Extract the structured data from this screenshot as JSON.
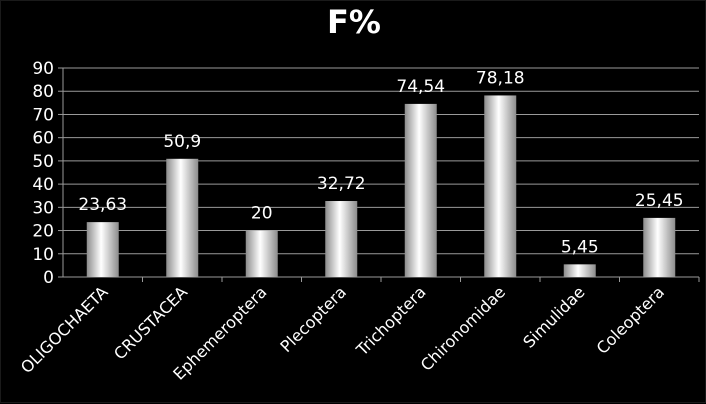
{
  "chart_data": {
    "type": "bar",
    "title": "F%",
    "xlabel": "",
    "ylabel": "",
    "categories": [
      "OLIGOCHAETA",
      "CRUSTACEA",
      "Ephemeroptera",
      "Plecoptera",
      "Trichoptera",
      "Chironomidae",
      "Simulidae",
      "Coleoptera"
    ],
    "values": [
      23.63,
      50.9,
      20,
      32.72,
      74.54,
      78.18,
      5.45,
      25.45
    ],
    "data_labels": [
      "23,63",
      "50,9",
      "20",
      "32,72",
      "74,54",
      "78,18",
      "5,45",
      "25,45"
    ],
    "y_ticks": [
      "0",
      "10",
      "20",
      "30",
      "40",
      "50",
      "60",
      "70",
      "80",
      "90"
    ],
    "ylim": [
      0,
      90
    ],
    "grid": true,
    "legend": "none",
    "colors": {
      "background": "#000000",
      "bar_light": "#ffffff",
      "bar_dark": "#8c8c8c",
      "grid": "#9a9a9a",
      "text": "#ffffff"
    }
  }
}
